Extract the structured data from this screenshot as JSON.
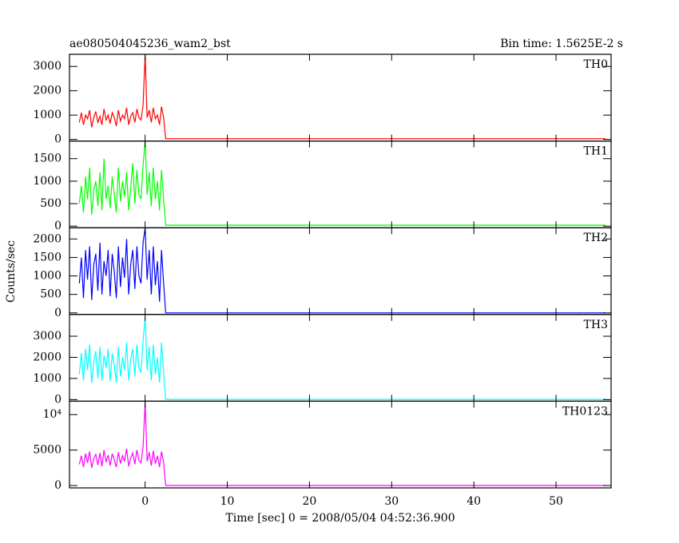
{
  "chart_data": {
    "type": "line",
    "title": "ae080504045236_wam2_bst",
    "subtitle": "Bin time: 1.5625E-2 s",
    "y_label": "Counts/sec",
    "x_label": "Time [sec] 0 = 2008/05/04 04:52:36.900",
    "xlim": [
      -9.2,
      56.7
    ],
    "xticks": [
      0,
      10,
      20,
      30,
      40,
      50
    ],
    "x": [
      -8,
      -7.75,
      -7.5,
      -7.25,
      -7,
      -6.75,
      -6.5,
      -6.25,
      -6,
      -5.75,
      -5.5,
      -5.25,
      -5,
      -4.75,
      -4.5,
      -4.25,
      -4,
      -3.75,
      -3.5,
      -3.25,
      -3,
      -2.75,
      -2.5,
      -2.25,
      -2,
      -1.75,
      -1.5,
      -1.25,
      -1,
      -0.75,
      -0.5,
      -0.25,
      0,
      0.25,
      0.5,
      0.75,
      1,
      1.25,
      1.5,
      1.75,
      2,
      2.25,
      2.5,
      56
    ],
    "series": [
      {
        "name": "TH0",
        "color": "#ff0000",
        "ylim": [
          -66,
          3500
        ],
        "yticks": [
          0,
          1000,
          2000,
          3000
        ],
        "values": [
          700,
          1100,
          600,
          1000,
          850,
          1200,
          500,
          900,
          1150,
          700,
          950,
          600,
          1250,
          800,
          1000,
          650,
          1100,
          900,
          550,
          1200,
          750,
          1000,
          850,
          1300,
          600,
          950,
          1100,
          700,
          1250,
          900,
          800,
          1400,
          3500,
          900,
          1200,
          700,
          1300,
          850,
          1000,
          600,
          1350,
          900,
          30,
          30
        ]
      },
      {
        "name": "TH1",
        "color": "#00ff00",
        "ylim": [
          -36,
          1893
        ],
        "yticks": [
          0,
          500,
          1000,
          1500
        ],
        "values": [
          500,
          900,
          300,
          1100,
          600,
          1300,
          250,
          800,
          1000,
          450,
          1200,
          350,
          1500,
          600,
          900,
          400,
          1100,
          700,
          300,
          1300,
          550,
          1000,
          650,
          1200,
          350,
          850,
          1400,
          500,
          1250,
          700,
          600,
          1350,
          1900,
          700,
          1200,
          450,
          1300,
          600,
          1000,
          350,
          1250,
          600,
          20,
          20
        ]
      },
      {
        "name": "TH2",
        "color": "#0000ff",
        "ylim": [
          -43,
          2304
        ],
        "yticks": [
          0,
          500,
          1000,
          1500,
          2000
        ],
        "values": [
          800,
          1500,
          400,
          1700,
          900,
          1800,
          350,
          1300,
          1600,
          600,
          1900,
          500,
          1400,
          1000,
          1700,
          450,
          1600,
          1100,
          400,
          1800,
          700,
          1500,
          950,
          2000,
          500,
          1300,
          1700,
          650,
          1800,
          1000,
          800,
          1900,
          2300,
          900,
          1700,
          500,
          1800,
          750,
          1400,
          300,
          1700,
          800,
          0,
          0
        ]
      },
      {
        "name": "TH3",
        "color": "#00ffff",
        "ylim": [
          -76,
          4030
        ],
        "yticks": [
          0,
          1000,
          2000,
          3000
        ],
        "values": [
          1200,
          2200,
          900,
          2400,
          1400,
          2600,
          800,
          1800,
          2300,
          1000,
          2500,
          900,
          2100,
          1500,
          2400,
          850,
          2200,
          1600,
          800,
          2500,
          1100,
          2000,
          1400,
          2700,
          900,
          1900,
          2400,
          1100,
          2600,
          1500,
          1300,
          2800,
          3900,
          1400,
          2500,
          900,
          2600,
          1200,
          2000,
          800,
          2700,
          1300,
          10,
          10
        ]
      },
      {
        "name": "TH0123",
        "color": "#ff00ff",
        "ylim": [
          -333,
          11890
        ],
        "yticks": [
          0,
          5000,
          {
            "value": 10000,
            "label": "10⁴"
          }
        ],
        "values": [
          3000,
          4200,
          2600,
          4500,
          3200,
          4800,
          2500,
          3800,
          4400,
          2900,
          4600,
          2700,
          5000,
          3300,
          4300,
          2800,
          4500,
          3600,
          2600,
          4700,
          3100,
          4200,
          3400,
          5200,
          2700,
          3900,
          4600,
          3000,
          5000,
          3500,
          3200,
          5400,
          11800,
          3400,
          4700,
          2800,
          4900,
          3100,
          4200,
          2600,
          4800,
          3300,
          0,
          0
        ]
      }
    ]
  }
}
